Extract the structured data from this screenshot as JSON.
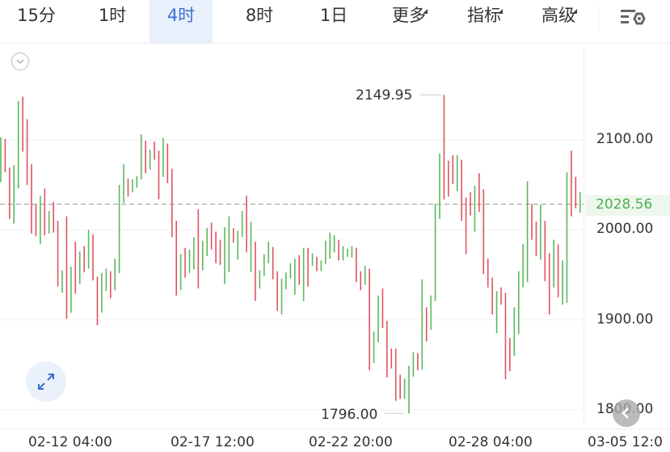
{
  "toolbar": {
    "tabs": [
      {
        "label": "15分",
        "active": false,
        "dropdown": false
      },
      {
        "label": "1时",
        "active": false,
        "dropdown": false
      },
      {
        "label": "4时",
        "active": true,
        "dropdown": false
      },
      {
        "label": "8时",
        "active": false,
        "dropdown": false
      },
      {
        "label": "1日",
        "active": false,
        "dropdown": false
      },
      {
        "label": "更多",
        "active": false,
        "dropdown": true
      },
      {
        "label": "指标",
        "active": false,
        "dropdown": true
      },
      {
        "label": "高级",
        "active": false,
        "dropdown": true
      }
    ],
    "settings_icon": "chart-settings-icon"
  },
  "colors": {
    "up": "#5cb85c",
    "down": "#e05262",
    "accent": "#3d6fd0",
    "current_price": "#4caf50"
  },
  "chart_data": {
    "type": "ohlc",
    "ylim": [
      1775,
      2175
    ],
    "yticks": [
      "2100.00",
      "2000.00",
      "1900.00",
      "1800.00"
    ],
    "ytick_values": [
      2100,
      2000,
      1900,
      1800
    ],
    "xticks": [
      "02-12 04:00",
      "02-17 12:00",
      "02-22 20:00",
      "02-28 04:00",
      "03-05 12:0"
    ],
    "current_price": {
      "value": 2028.56,
      "label": "2028.56"
    },
    "max_annotation": {
      "value": 2149.95,
      "label": "2149.95"
    },
    "min_annotation": {
      "value": 1796.0,
      "label": "1796.00"
    },
    "bars": [
      [
        2103,
        2053,
        "u"
      ],
      [
        2101,
        2064,
        "d"
      ],
      [
        2069,
        2012,
        "d"
      ],
      [
        2072,
        2007,
        "u"
      ],
      [
        2143,
        2046,
        "u"
      ],
      [
        2148,
        2087,
        "d"
      ],
      [
        2123,
        2050,
        "d"
      ],
      [
        2073,
        1996,
        "d"
      ],
      [
        2028,
        1993,
        "d"
      ],
      [
        2038,
        1984,
        "u"
      ],
      [
        2046,
        1994,
        "d"
      ],
      [
        2021,
        1996,
        "u"
      ],
      [
        2031,
        1997,
        "d"
      ],
      [
        2010,
        1937,
        "d"
      ],
      [
        1955,
        1930,
        "u"
      ],
      [
        2015,
        1901,
        "d"
      ],
      [
        1959,
        1908,
        "u"
      ],
      [
        1987,
        1929,
        "d"
      ],
      [
        1976,
        1940,
        "u"
      ],
      [
        1982,
        1953,
        "d"
      ],
      [
        2000,
        1957,
        "u"
      ],
      [
        1995,
        1944,
        "d"
      ],
      [
        1948,
        1894,
        "d"
      ],
      [
        1952,
        1908,
        "u"
      ],
      [
        1957,
        1932,
        "u"
      ],
      [
        1954,
        1924,
        "d"
      ],
      [
        1968,
        1933,
        "u"
      ],
      [
        2050,
        1952,
        "u"
      ],
      [
        2073,
        2030,
        "u"
      ],
      [
        2057,
        2037,
        "d"
      ],
      [
        2056,
        2042,
        "u"
      ],
      [
        2060,
        2047,
        "u"
      ],
      [
        2106,
        2056,
        "u"
      ],
      [
        2099,
        2063,
        "d"
      ],
      [
        2089,
        2067,
        "u"
      ],
      [
        2098,
        2078,
        "d"
      ],
      [
        2088,
        2034,
        "d"
      ],
      [
        2102,
        2059,
        "u"
      ],
      [
        2096,
        2052,
        "d"
      ],
      [
        2068,
        1992,
        "d"
      ],
      [
        2010,
        1927,
        "d"
      ],
      [
        1973,
        1933,
        "u"
      ],
      [
        1980,
        1947,
        "d"
      ],
      [
        1978,
        1952,
        "u"
      ],
      [
        1992,
        1956,
        "u"
      ],
      [
        2023,
        1935,
        "d"
      ],
      [
        1988,
        1955,
        "u"
      ],
      [
        2002,
        1971,
        "u"
      ],
      [
        2008,
        1978,
        "d"
      ],
      [
        1998,
        1963,
        "d"
      ],
      [
        1989,
        1961,
        "d"
      ],
      [
        2003,
        1940,
        "u"
      ],
      [
        2015,
        1953,
        "u"
      ],
      [
        2002,
        1986,
        "d"
      ],
      [
        1999,
        1967,
        "u"
      ],
      [
        2021,
        1992,
        "u"
      ],
      [
        2038,
        1975,
        "d"
      ],
      [
        2009,
        1953,
        "u"
      ],
      [
        1987,
        1921,
        "d"
      ],
      [
        1955,
        1935,
        "u"
      ],
      [
        1973,
        1949,
        "u"
      ],
      [
        1987,
        1963,
        "u"
      ],
      [
        1981,
        1945,
        "d"
      ],
      [
        1954,
        1910,
        "d"
      ],
      [
        1946,
        1906,
        "u"
      ],
      [
        1953,
        1934,
        "u"
      ],
      [
        1963,
        1946,
        "u"
      ],
      [
        1968,
        1928,
        "u"
      ],
      [
        1972,
        1939,
        "d"
      ],
      [
        1980,
        1921,
        "u"
      ],
      [
        1980,
        1937,
        "d"
      ],
      [
        1974,
        1960,
        "u"
      ],
      [
        1970,
        1954,
        "d"
      ],
      [
        1966,
        1954,
        "u"
      ],
      [
        1988,
        1962,
        "u"
      ],
      [
        1997,
        1968,
        "u"
      ],
      [
        1994,
        1975,
        "u"
      ],
      [
        1989,
        1966,
        "d"
      ],
      [
        1982,
        1966,
        "u"
      ],
      [
        1979,
        1970,
        "u"
      ],
      [
        1982,
        1969,
        "u"
      ],
      [
        1980,
        1942,
        "d"
      ],
      [
        1954,
        1933,
        "d"
      ],
      [
        1960,
        1939,
        "u"
      ],
      [
        1957,
        1844,
        "d"
      ],
      [
        1887,
        1852,
        "u"
      ],
      [
        1927,
        1875,
        "u"
      ],
      [
        1935,
        1891,
        "d"
      ],
      [
        1899,
        1836,
        "d"
      ],
      [
        1868,
        1846,
        "d"
      ],
      [
        1868,
        1810,
        "d"
      ],
      [
        1839,
        1812,
        "d"
      ],
      [
        1835,
        1812,
        "u"
      ],
      [
        1849,
        1796,
        "u"
      ],
      [
        1864,
        1837,
        "u"
      ],
      [
        1863,
        1844,
        "d"
      ],
      [
        1945,
        1845,
        "u"
      ],
      [
        1914,
        1876,
        "d"
      ],
      [
        1927,
        1889,
        "u"
      ],
      [
        2029,
        1921,
        "u"
      ],
      [
        2085,
        2012,
        "u"
      ],
      [
        2149.95,
        2034,
        "d"
      ],
      [
        2077,
        2037,
        "d"
      ],
      [
        2083,
        2051,
        "d"
      ],
      [
        2083,
        2043,
        "u"
      ],
      [
        2078,
        2010,
        "d"
      ],
      [
        2036,
        1973,
        "d"
      ],
      [
        2042,
        2016,
        "d"
      ],
      [
        2049,
        1998,
        "u"
      ],
      [
        2063,
        2020,
        "d"
      ],
      [
        2045,
        1951,
        "d"
      ],
      [
        1968,
        1936,
        "d"
      ],
      [
        1947,
        1906,
        "d"
      ],
      [
        1932,
        1885,
        "u"
      ],
      [
        1936,
        1917,
        "d"
      ],
      [
        1930,
        1834,
        "d"
      ],
      [
        1880,
        1843,
        "d"
      ],
      [
        1914,
        1860,
        "u"
      ],
      [
        1954,
        1884,
        "u"
      ],
      [
        1984,
        1936,
        "u"
      ],
      [
        2054,
        1942,
        "u"
      ],
      [
        2029,
        1989,
        "d"
      ],
      [
        2009,
        1971,
        "d"
      ],
      [
        2028,
        1967,
        "u"
      ],
      [
        2010,
        1943,
        "d"
      ],
      [
        1974,
        1906,
        "d"
      ],
      [
        1989,
        1936,
        "u"
      ],
      [
        1984,
        1925,
        "d"
      ],
      [
        1966,
        1917,
        "u"
      ],
      [
        2064,
        1919,
        "u"
      ],
      [
        2088,
        2015,
        "d"
      ],
      [
        2059,
        2024,
        "d"
      ],
      [
        2042,
        2019,
        "u"
      ]
    ]
  },
  "icons": {
    "collapse": "chevron-down-circle-icon",
    "expand": "expand-icon",
    "back": "chevron-left-icon"
  }
}
